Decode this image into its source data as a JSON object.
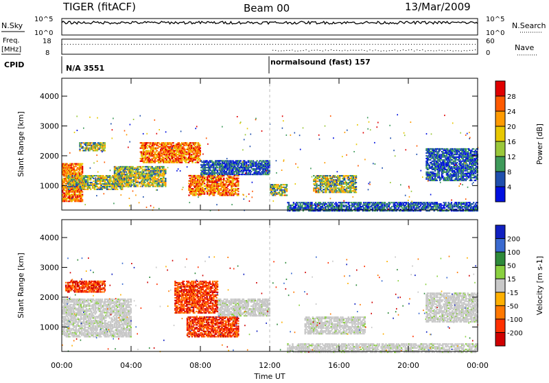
{
  "header": {
    "radar": "TIGER (fitACF)",
    "beam": "Beam 00",
    "date": "13/Mar/2009"
  },
  "aux": {
    "nsky_label": "N.Sky",
    "nsearch_label": "N.Search",
    "freq_label": "Freq.",
    "freq_unit": "[MHz]",
    "nave_label": "Nave",
    "cpid_label": "CPID",
    "noise_ticks": [
      "10^5",
      "10^0"
    ],
    "freq_ticks": [
      "18",
      "8"
    ],
    "nave_ticks": [
      "60",
      "0"
    ],
    "cpid_segments": [
      {
        "text": "N/A 3551",
        "start_hour": 0
      },
      {
        "text": "normalsound (fast) 157",
        "start_hour": 12
      }
    ]
  },
  "chart_data": [
    {
      "type": "heatmap",
      "name": "power",
      "ylabel": "Slant Range [km]",
      "xlabel": "",
      "x_range_hours": [
        0,
        24
      ],
      "ylim": [
        180,
        4600
      ],
      "yticks": [
        1000,
        2000,
        3000,
        4000
      ],
      "colorbar": {
        "label": "Power [dB]",
        "ticks": [
          "28",
          "24",
          "20",
          "16",
          "12",
          "8",
          "4"
        ],
        "colors": [
          "#e00000",
          "#ff5a00",
          "#ff9a00",
          "#e8c800",
          "#9ac83a",
          "#3e9a5a",
          "#1f4fae",
          "#0010e0"
        ]
      },
      "echo_regions": [
        {
          "t0": 0.0,
          "t1": 1.2,
          "r0": 500,
          "r1": 1800,
          "level": "high"
        },
        {
          "t0": 0.3,
          "t1": 3.5,
          "r0": 900,
          "r1": 1400,
          "level": "mid"
        },
        {
          "t0": 1.0,
          "t1": 2.5,
          "r0": 2200,
          "r1": 2500,
          "level": "mid"
        },
        {
          "t0": 3.0,
          "t1": 6.0,
          "r0": 1000,
          "r1": 1700,
          "level": "mid"
        },
        {
          "t0": 4.5,
          "t1": 8.0,
          "r0": 1800,
          "r1": 2500,
          "level": "high"
        },
        {
          "t0": 7.3,
          "t1": 10.2,
          "r0": 700,
          "r1": 1400,
          "level": "high"
        },
        {
          "t0": 8.0,
          "t1": 12.0,
          "r0": 1400,
          "r1": 1900,
          "level": "low"
        },
        {
          "t0": 12.0,
          "t1": 13.0,
          "r0": 700,
          "r1": 1100,
          "level": "mid"
        },
        {
          "t0": 14.5,
          "t1": 17.0,
          "r0": 800,
          "r1": 1400,
          "level": "mid"
        },
        {
          "t0": 13.0,
          "t1": 24.0,
          "r0": 180,
          "r1": 500,
          "level": "low"
        },
        {
          "t0": 21.0,
          "t1": 24.0,
          "r0": 1200,
          "r1": 2300,
          "level": "low"
        }
      ]
    },
    {
      "type": "heatmap",
      "name": "velocity",
      "ylabel": "Slant Range [km]",
      "xlabel": "Time UT",
      "x_range_hours": [
        0,
        24
      ],
      "xticks": [
        "00:00",
        "04:00",
        "08:00",
        "12:00",
        "16:00",
        "20:00",
        "00:00"
      ],
      "ylim": [
        180,
        4600
      ],
      "yticks": [
        1000,
        2000,
        3000,
        4000
      ],
      "colorbar": {
        "label": "Velocity [m s-1]",
        "ticks": [
          "200",
          "100",
          "50",
          "15",
          "-15",
          "-50",
          "-100",
          "-200"
        ],
        "colors": [
          "#1020c0",
          "#3a6ad0",
          "#2e8a3a",
          "#8ad040",
          "#c8c8c8",
          "#ffb000",
          "#ff7800",
          "#ff3000",
          "#d00000"
        ]
      },
      "echo_regions": [
        {
          "t0": 0.0,
          "t1": 4.0,
          "r0": 700,
          "r1": 2000,
          "level": "ground"
        },
        {
          "t0": 0.2,
          "t1": 2.5,
          "r0": 2200,
          "r1": 2600,
          "level": "negative"
        },
        {
          "t0": 7.2,
          "t1": 10.2,
          "r0": 700,
          "r1": 1400,
          "level": "negative"
        },
        {
          "t0": 6.5,
          "t1": 9.0,
          "r0": 1500,
          "r1": 2600,
          "level": "negative"
        },
        {
          "t0": 9.0,
          "t1": 12.0,
          "r0": 1400,
          "r1": 2000,
          "level": "ground"
        },
        {
          "t0": 14.0,
          "t1": 17.5,
          "r0": 800,
          "r1": 1400,
          "level": "ground"
        },
        {
          "t0": 13.0,
          "t1": 24.0,
          "r0": 180,
          "r1": 500,
          "level": "ground"
        },
        {
          "t0": 21.0,
          "t1": 24.0,
          "r0": 1200,
          "r1": 2200,
          "level": "ground"
        }
      ]
    }
  ]
}
